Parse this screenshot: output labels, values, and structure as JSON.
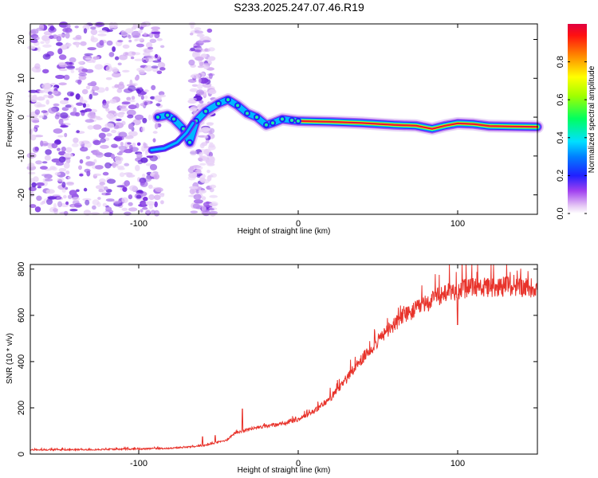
{
  "title": "S233.2025.247.07.46.R19",
  "chart_data": [
    {
      "type": "heatmap",
      "xlabel": "Height of straight line (km)",
      "ylabel": "Frequency (Hz)",
      "xlim": [
        -168,
        150
      ],
      "ylim": [
        -25,
        24
      ],
      "xticks": [
        -100,
        0,
        100
      ],
      "yticks": [
        -20,
        -10,
        0,
        10,
        20
      ],
      "colorbar": {
        "label": "Normalized spectral amplitude",
        "range": [
          0,
          1
        ],
        "ticks": [
          0.0,
          0.2,
          0.4,
          0.6,
          0.8
        ]
      },
      "ridge": {
        "description_points": [
          [
            -88,
            0
          ],
          [
            -82,
            0.5
          ],
          [
            -78,
            -0.5
          ],
          [
            -72,
            -3
          ],
          [
            -68,
            -6.5
          ],
          [
            -64,
            -1
          ],
          [
            -58,
            1.5
          ],
          [
            -50,
            3.5
          ],
          [
            -44,
            4.5
          ],
          [
            -38,
            3
          ],
          [
            -32,
            1
          ],
          [
            -26,
            0
          ],
          [
            -20,
            -2
          ],
          [
            -16,
            -1.5
          ],
          [
            -10,
            -0.5
          ],
          [
            -4,
            -0.8
          ],
          [
            0,
            -1
          ],
          [
            20,
            -1.2
          ],
          [
            40,
            -1.5
          ],
          [
            60,
            -2
          ],
          [
            74,
            -2.2
          ],
          [
            84,
            -3
          ],
          [
            92,
            -2.2
          ],
          [
            100,
            -1.6
          ],
          [
            110,
            -1.8
          ],
          [
            120,
            -2.3
          ],
          [
            150,
            -2.5
          ]
        ],
        "secondary_branch": [
          [
            -92,
            -8.5
          ],
          [
            -84,
            -8
          ],
          [
            -76,
            -6.5
          ],
          [
            -70,
            -4
          ],
          [
            -66,
            -1.5
          ]
        ]
      }
    },
    {
      "type": "line",
      "xlabel": "Height of straight line (km)",
      "ylabel": "SNR (10 * v/v)",
      "xlim": [
        -168,
        150
      ],
      "ylim": [
        0,
        820
      ],
      "xticks": [
        -100,
        0,
        100
      ],
      "yticks": [
        0,
        200,
        400,
        600,
        800
      ],
      "series": [
        {
          "name": "SNR",
          "color": "#e8332b",
          "envelope": {
            "x": [
              -168,
              -120,
              -80,
              -60,
              -45,
              -40,
              -30,
              -20,
              -10,
              0,
              10,
              20,
              30,
              40,
              50,
              60,
              70,
              80,
              90,
              100,
              110,
              120,
              130,
              140,
              150
            ],
            "y": [
              18,
              20,
              25,
              35,
              60,
              90,
              110,
              120,
              130,
              150,
              185,
              240,
              320,
              410,
              490,
              560,
              610,
              650,
              690,
              710,
              720,
              720,
              725,
              722,
              720
            ]
          },
          "spikes": [
            [
              -35,
              195
            ],
            [
              100,
              560
            ],
            [
              -60,
              75
            ],
            [
              -52,
              80
            ]
          ]
        }
      ]
    }
  ]
}
